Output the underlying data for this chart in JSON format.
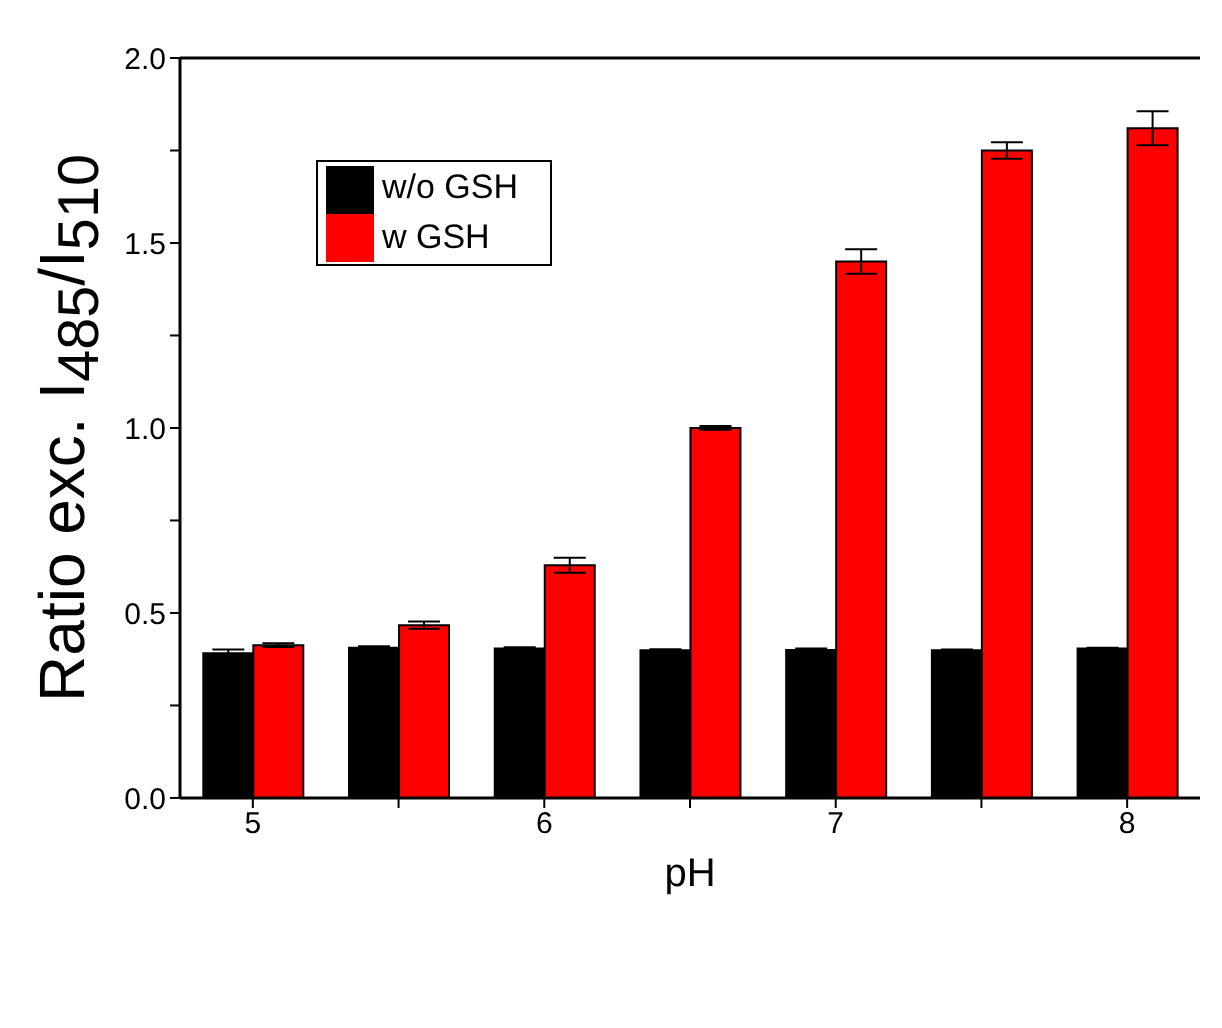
{
  "chart_data": {
    "type": "bar",
    "xlabel": "pH",
    "ylabel": "Ratio exc. I$_{485}$/I$_{510}$",
    "categories": [
      "5",
      null,
      "6",
      null,
      "7",
      null,
      "8"
    ],
    "series": [
      {
        "name": "w/o GSH",
        "color": "#000000",
        "values": [
          0.391,
          0.406,
          0.404,
          0.399,
          0.4,
          0.399,
          0.404
        ],
        "errors": [
          0.01,
          0.004,
          0.003,
          0.003,
          0.004,
          0.002,
          0.002
        ]
      },
      {
        "name": "w GSH",
        "color": "#ff0000",
        "values": [
          0.413,
          0.467,
          0.629,
          1.0,
          1.45,
          1.75,
          1.81
        ],
        "errors": [
          0.005,
          0.01,
          0.02,
          0.005,
          0.033,
          0.022,
          0.046
        ]
      }
    ],
    "ylim": [
      0,
      2
    ],
    "yticks": [
      {
        "value": 0,
        "label": "0.0"
      },
      {
        "value": 0.25,
        "label": null
      },
      {
        "value": 0.5,
        "label": "0.5"
      },
      {
        "value": 0.75,
        "label": null
      },
      {
        "value": 1,
        "label": "1.0"
      },
      {
        "value": 1.25,
        "label": null
      },
      {
        "value": 1.5,
        "label": "1.5"
      },
      {
        "value": 1.75,
        "label": null
      },
      {
        "value": 2,
        "label": "2.0"
      }
    ],
    "legend": "top left",
    "grid": false
  }
}
